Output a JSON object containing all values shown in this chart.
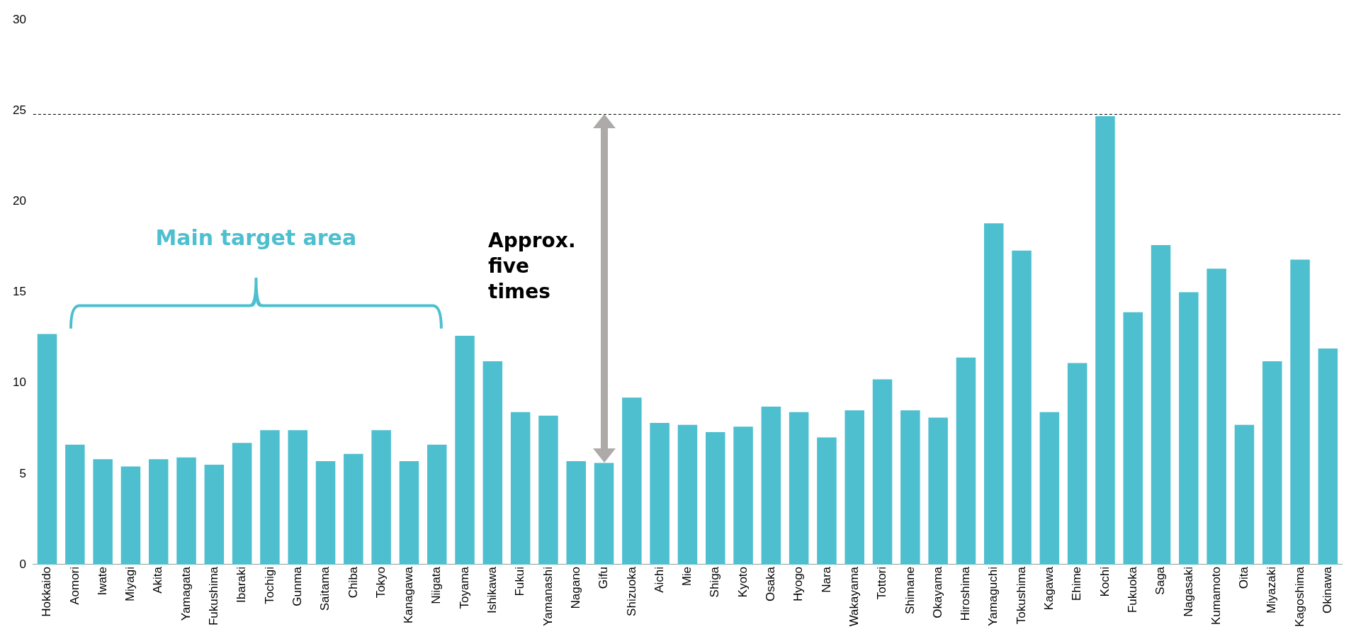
{
  "chart_data": {
    "type": "bar",
    "categories": [
      "Hokkaido",
      "Aomori",
      "Iwate",
      "Miyagi",
      "Akita",
      "Yamagata",
      "Fukushima",
      "Ibaraki",
      "Tochigi",
      "Gunma",
      "Saitama",
      "Chiba",
      "Tokyo",
      "Kanagawa",
      "Niigata",
      "Toyama",
      "Ishikawa",
      "Fukui",
      "Yamanashi",
      "Nagano",
      "Gifu",
      "Shizuoka",
      "Aichi",
      "Mie",
      "Shiga",
      "Kyoto",
      "Osaka",
      "Hyogo",
      "Nara",
      "Wakayama",
      "Tottori",
      "Shimane",
      "Okayama",
      "Hiroshima",
      "Yamaguchi",
      "Tokushima",
      "Kagawa",
      "Ehime",
      "Kochi",
      "Fukuoka",
      "Saga",
      "Nagasaki",
      "Kumamoto",
      "Oita",
      "Miyazaki",
      "Kagoshima",
      "Okinawa"
    ],
    "values": [
      12.7,
      6.6,
      5.8,
      5.4,
      5.8,
      5.9,
      5.5,
      6.7,
      7.4,
      7.4,
      5.7,
      6.1,
      7.4,
      5.7,
      6.6,
      12.6,
      11.2,
      8.4,
      8.2,
      5.7,
      5.6,
      9.2,
      7.8,
      7.7,
      7.3,
      7.6,
      8.7,
      8.4,
      7.0,
      8.5,
      10.2,
      8.5,
      8.1,
      11.4,
      18.8,
      17.3,
      8.4,
      11.1,
      24.7,
      13.9,
      17.6,
      15.0,
      16.3,
      7.7,
      11.2,
      16.8,
      11.9
    ],
    "color": "#4dbfcf",
    "ylim": [
      0,
      30
    ],
    "yticks": [
      0,
      5,
      10,
      15,
      20,
      25,
      30
    ],
    "grid": false,
    "legend": false,
    "ref_lines": [
      {
        "axis": "y",
        "value": 24.8,
        "color": "#000000",
        "line_style": "dashed"
      }
    ],
    "annotations": [
      "Main target area",
      "Approx. five times"
    ]
  }
}
